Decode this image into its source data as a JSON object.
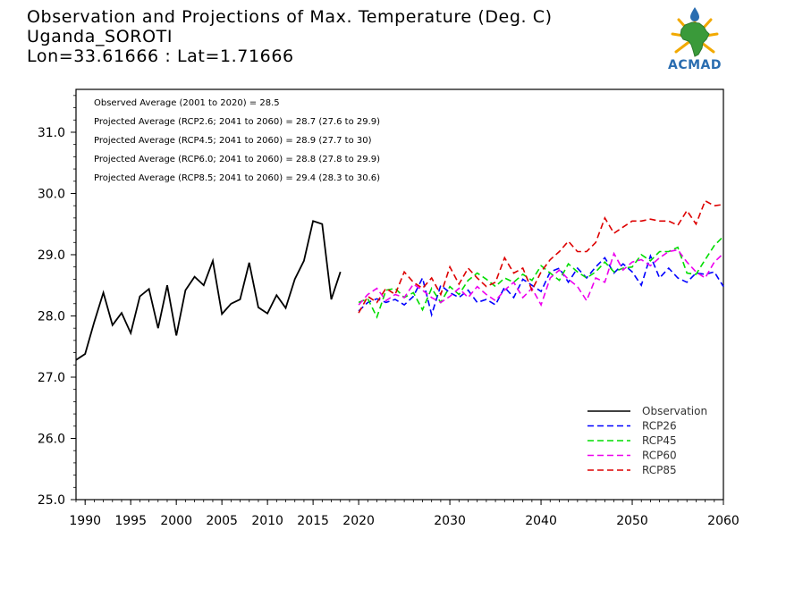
{
  "header": {
    "title_line1": "Observation and Projections of Max. Temperature (Deg. C)",
    "title_line2": "Uganda_SOROTI",
    "title_line3": "Lon=33.61666 : Lat=1.71666"
  },
  "logo": {
    "text": "ACMAD",
    "colors": {
      "africa": "#3a9a3a",
      "rays": "#f2a900",
      "drop": "#2a6db0",
      "text": "#2a6db0"
    }
  },
  "annotations": [
    "Observed Average (2001 to 2020) = 28.5",
    "Projected Average (RCP2.6; 2041 to 2060) = 28.7 (27.6 to 29.9)",
    "Projected Average (RCP4.5; 2041 to 2060) = 28.9 (27.7 to 30)",
    "Projected Average (RCP6.0; 2041 to 2060) = 28.8 (27.8 to 29.9)",
    "Projected Average (RCP8.5; 2041 to 2060) = 29.4 (28.3 to 30.6)"
  ],
  "chart_data": {
    "type": "line",
    "xlim": [
      1989,
      2060
    ],
    "ylim": [
      25.0,
      31.7
    ],
    "x_ticks": [
      1990,
      1995,
      2000,
      2005,
      2010,
      2015,
      2020,
      2030,
      2040,
      2050,
      2060
    ],
    "y_ticks": [
      25.0,
      26.0,
      27.0,
      28.0,
      29.0,
      30.0,
      31.0
    ],
    "legend_position": "bottom-right",
    "series": [
      {
        "name": "Observation",
        "color": "#000000",
        "dashed": false,
        "x": [
          1989,
          1990,
          1991,
          1992,
          1993,
          1994,
          1995,
          1996,
          1997,
          1998,
          1999,
          2000,
          2001,
          2002,
          2003,
          2004,
          2005,
          2006,
          2007,
          2008,
          2009,
          2010,
          2011,
          2012,
          2013,
          2014,
          2015,
          2016,
          2017,
          2018,
          2019
        ],
        "y": [
          27.28,
          27.38,
          27.9,
          28.38,
          27.85,
          28.05,
          27.72,
          28.32,
          28.44,
          27.8,
          28.5,
          27.68,
          28.42,
          28.64,
          28.5,
          28.9,
          28.03,
          28.2,
          28.27,
          28.87,
          28.14,
          28.04,
          28.34,
          28.13,
          28.6,
          28.9,
          29.55,
          29.5,
          28.27,
          28.72,
          null
        ]
      },
      {
        "name": "RCP26",
        "color": "#0000ff",
        "dashed": true,
        "x": [
          2020,
          2021,
          2022,
          2023,
          2024,
          2025,
          2026,
          2027,
          2028,
          2029,
          2030,
          2031,
          2032,
          2033,
          2034,
          2035,
          2036,
          2037,
          2038,
          2039,
          2040,
          2041,
          2042,
          2043,
          2044,
          2045,
          2046,
          2047,
          2048,
          2049,
          2050,
          2051,
          2052,
          2053,
          2054,
          2055,
          2056,
          2057,
          2058,
          2059,
          2060
        ],
        "y": [
          28.08,
          28.22,
          28.28,
          28.22,
          28.27,
          28.18,
          28.32,
          28.62,
          28.02,
          28.5,
          28.38,
          28.3,
          28.42,
          28.22,
          28.27,
          28.18,
          28.47,
          28.3,
          28.6,
          28.5,
          28.4,
          28.72,
          28.78,
          28.55,
          28.78,
          28.62,
          28.8,
          28.95,
          28.7,
          28.85,
          28.72,
          28.5,
          28.98,
          28.62,
          28.78,
          28.62,
          28.55,
          28.7,
          28.68,
          28.72,
          28.48
        ]
      },
      {
        "name": "RCP45",
        "color": "#00dd00",
        "dashed": true,
        "x": [
          2020,
          2021,
          2022,
          2023,
          2024,
          2025,
          2026,
          2027,
          2028,
          2029,
          2030,
          2031,
          2032,
          2033,
          2034,
          2035,
          2036,
          2037,
          2038,
          2039,
          2040,
          2041,
          2042,
          2043,
          2044,
          2045,
          2046,
          2047,
          2048,
          2049,
          2050,
          2051,
          2052,
          2053,
          2054,
          2055,
          2056,
          2057,
          2058,
          2059,
          2060
        ],
        "y": [
          28.22,
          28.28,
          27.98,
          28.42,
          28.45,
          28.3,
          28.38,
          28.1,
          28.45,
          28.22,
          28.48,
          28.35,
          28.58,
          28.7,
          28.6,
          28.48,
          28.62,
          28.55,
          28.68,
          28.58,
          28.82,
          28.7,
          28.58,
          28.85,
          28.72,
          28.62,
          28.72,
          28.88,
          28.72,
          28.78,
          28.8,
          29.0,
          28.9,
          29.05,
          29.05,
          29.12,
          28.7,
          28.68,
          28.92,
          29.15,
          29.3
        ]
      },
      {
        "name": "RCP60",
        "color": "#ee00ee",
        "dashed": true,
        "x": [
          2020,
          2021,
          2022,
          2023,
          2024,
          2025,
          2026,
          2027,
          2028,
          2029,
          2030,
          2031,
          2032,
          2033,
          2034,
          2035,
          2036,
          2037,
          2038,
          2039,
          2040,
          2041,
          2042,
          2043,
          2044,
          2045,
          2046,
          2047,
          2048,
          2049,
          2050,
          2051,
          2052,
          2053,
          2054,
          2055,
          2056,
          2057,
          2058,
          2059,
          2060
        ],
        "y": [
          28.18,
          28.35,
          28.45,
          28.25,
          28.35,
          28.3,
          28.52,
          28.42,
          28.3,
          28.22,
          28.32,
          28.45,
          28.3,
          28.48,
          28.35,
          28.25,
          28.42,
          28.55,
          28.3,
          28.45,
          28.18,
          28.62,
          28.75,
          28.6,
          28.48,
          28.25,
          28.62,
          28.55,
          29.02,
          28.75,
          28.88,
          28.92,
          28.82,
          28.95,
          29.05,
          29.08,
          28.88,
          28.72,
          28.62,
          28.88,
          29.02
        ]
      },
      {
        "name": "RCP85",
        "color": "#dd0000",
        "dashed": true,
        "x": [
          2020,
          2021,
          2022,
          2023,
          2024,
          2025,
          2026,
          2027,
          2028,
          2029,
          2030,
          2031,
          2032,
          2033,
          2034,
          2035,
          2036,
          2037,
          2038,
          2039,
          2040,
          2041,
          2042,
          2043,
          2044,
          2045,
          2046,
          2047,
          2048,
          2049,
          2050,
          2051,
          2052,
          2053,
          2054,
          2055,
          2056,
          2057,
          2058,
          2059,
          2060
        ],
        "y": [
          28.05,
          28.32,
          28.22,
          28.45,
          28.35,
          28.72,
          28.55,
          28.45,
          28.62,
          28.35,
          28.8,
          28.52,
          28.78,
          28.62,
          28.48,
          28.55,
          28.95,
          28.7,
          28.78,
          28.42,
          28.72,
          28.92,
          29.05,
          29.22,
          29.05,
          29.05,
          29.2,
          29.6,
          29.35,
          29.45,
          29.55,
          29.55,
          29.58,
          29.55,
          29.55,
          29.48,
          29.72,
          29.5,
          29.88,
          29.8,
          29.82
        ]
      }
    ]
  }
}
